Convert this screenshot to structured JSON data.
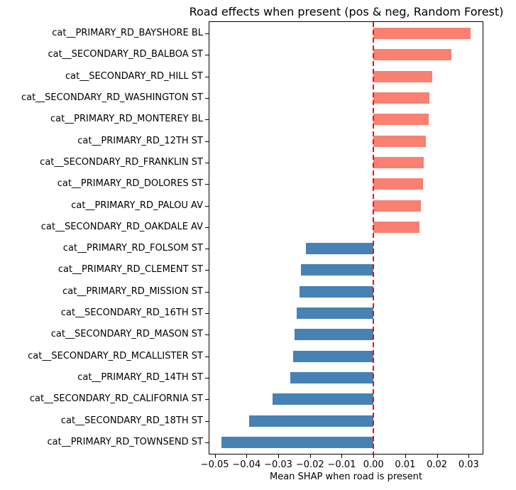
{
  "chart_data": {
    "type": "bar",
    "orientation": "horizontal",
    "title": "Road effects when present (pos & neg, Random Forest)",
    "xlabel": "Mean SHAP when road is present",
    "ylabel": "",
    "categories": [
      "cat__PRIMARY_RD_BAYSHORE BL",
      "cat__SECONDARY_RD_BALBOA ST",
      "cat__SECONDARY_RD_HILL ST",
      "cat__SECONDARY_RD_WASHINGTON ST",
      "cat__PRIMARY_RD_MONTEREY BL",
      "cat__PRIMARY_RD_12TH ST",
      "cat__SECONDARY_RD_FRANKLIN ST",
      "cat__PRIMARY_RD_DOLORES ST",
      "cat__PRIMARY_RD_PALOU AV",
      "cat__SECONDARY_RD_OAKDALE AV",
      "cat__PRIMARY_RD_FOLSOM ST",
      "cat__PRIMARY_RD_CLEMENT ST",
      "cat__PRIMARY_RD_MISSION ST",
      "cat__SECONDARY_RD_16TH ST",
      "cat__SECONDARY_RD_MASON ST",
      "cat__SECONDARY_RD_MCALLISTER ST",
      "cat__PRIMARY_RD_14TH ST",
      "cat__SECONDARY_RD_CALIFORNIA ST",
      "cat__SECONDARY_RD_18TH ST",
      "cat__PRIMARY_RD_TOWNSEND ST"
    ],
    "values": [
      0.0305,
      0.0245,
      0.0185,
      0.0177,
      0.0174,
      0.0166,
      0.0158,
      0.0156,
      0.015,
      0.0146,
      -0.0212,
      -0.0228,
      -0.0234,
      -0.0241,
      -0.0248,
      -0.0252,
      -0.0263,
      -0.0319,
      -0.0392,
      -0.0478
    ],
    "xlim": [
      -0.0517,
      0.0344
    ],
    "xticks": {
      "values": [
        -0.05,
        -0.04,
        -0.03,
        -0.02,
        -0.01,
        0.0,
        0.01,
        0.02,
        0.03
      ],
      "labels": [
        "−0.05",
        "−0.04",
        "−0.03",
        "−0.02",
        "−0.01",
        "0.00",
        "0.01",
        "0.02",
        "0.03"
      ]
    },
    "zero_line": {
      "x": 0,
      "style": "dashed",
      "color": "#ff0000",
      "width": 2
    },
    "colors": {
      "positive_bar": "#fa8072",
      "negative_bar": "#4682b4",
      "zero_line": "#ff0000",
      "spine": "#000000",
      "background": "#ffffff"
    },
    "grid": false,
    "legend": null
  }
}
